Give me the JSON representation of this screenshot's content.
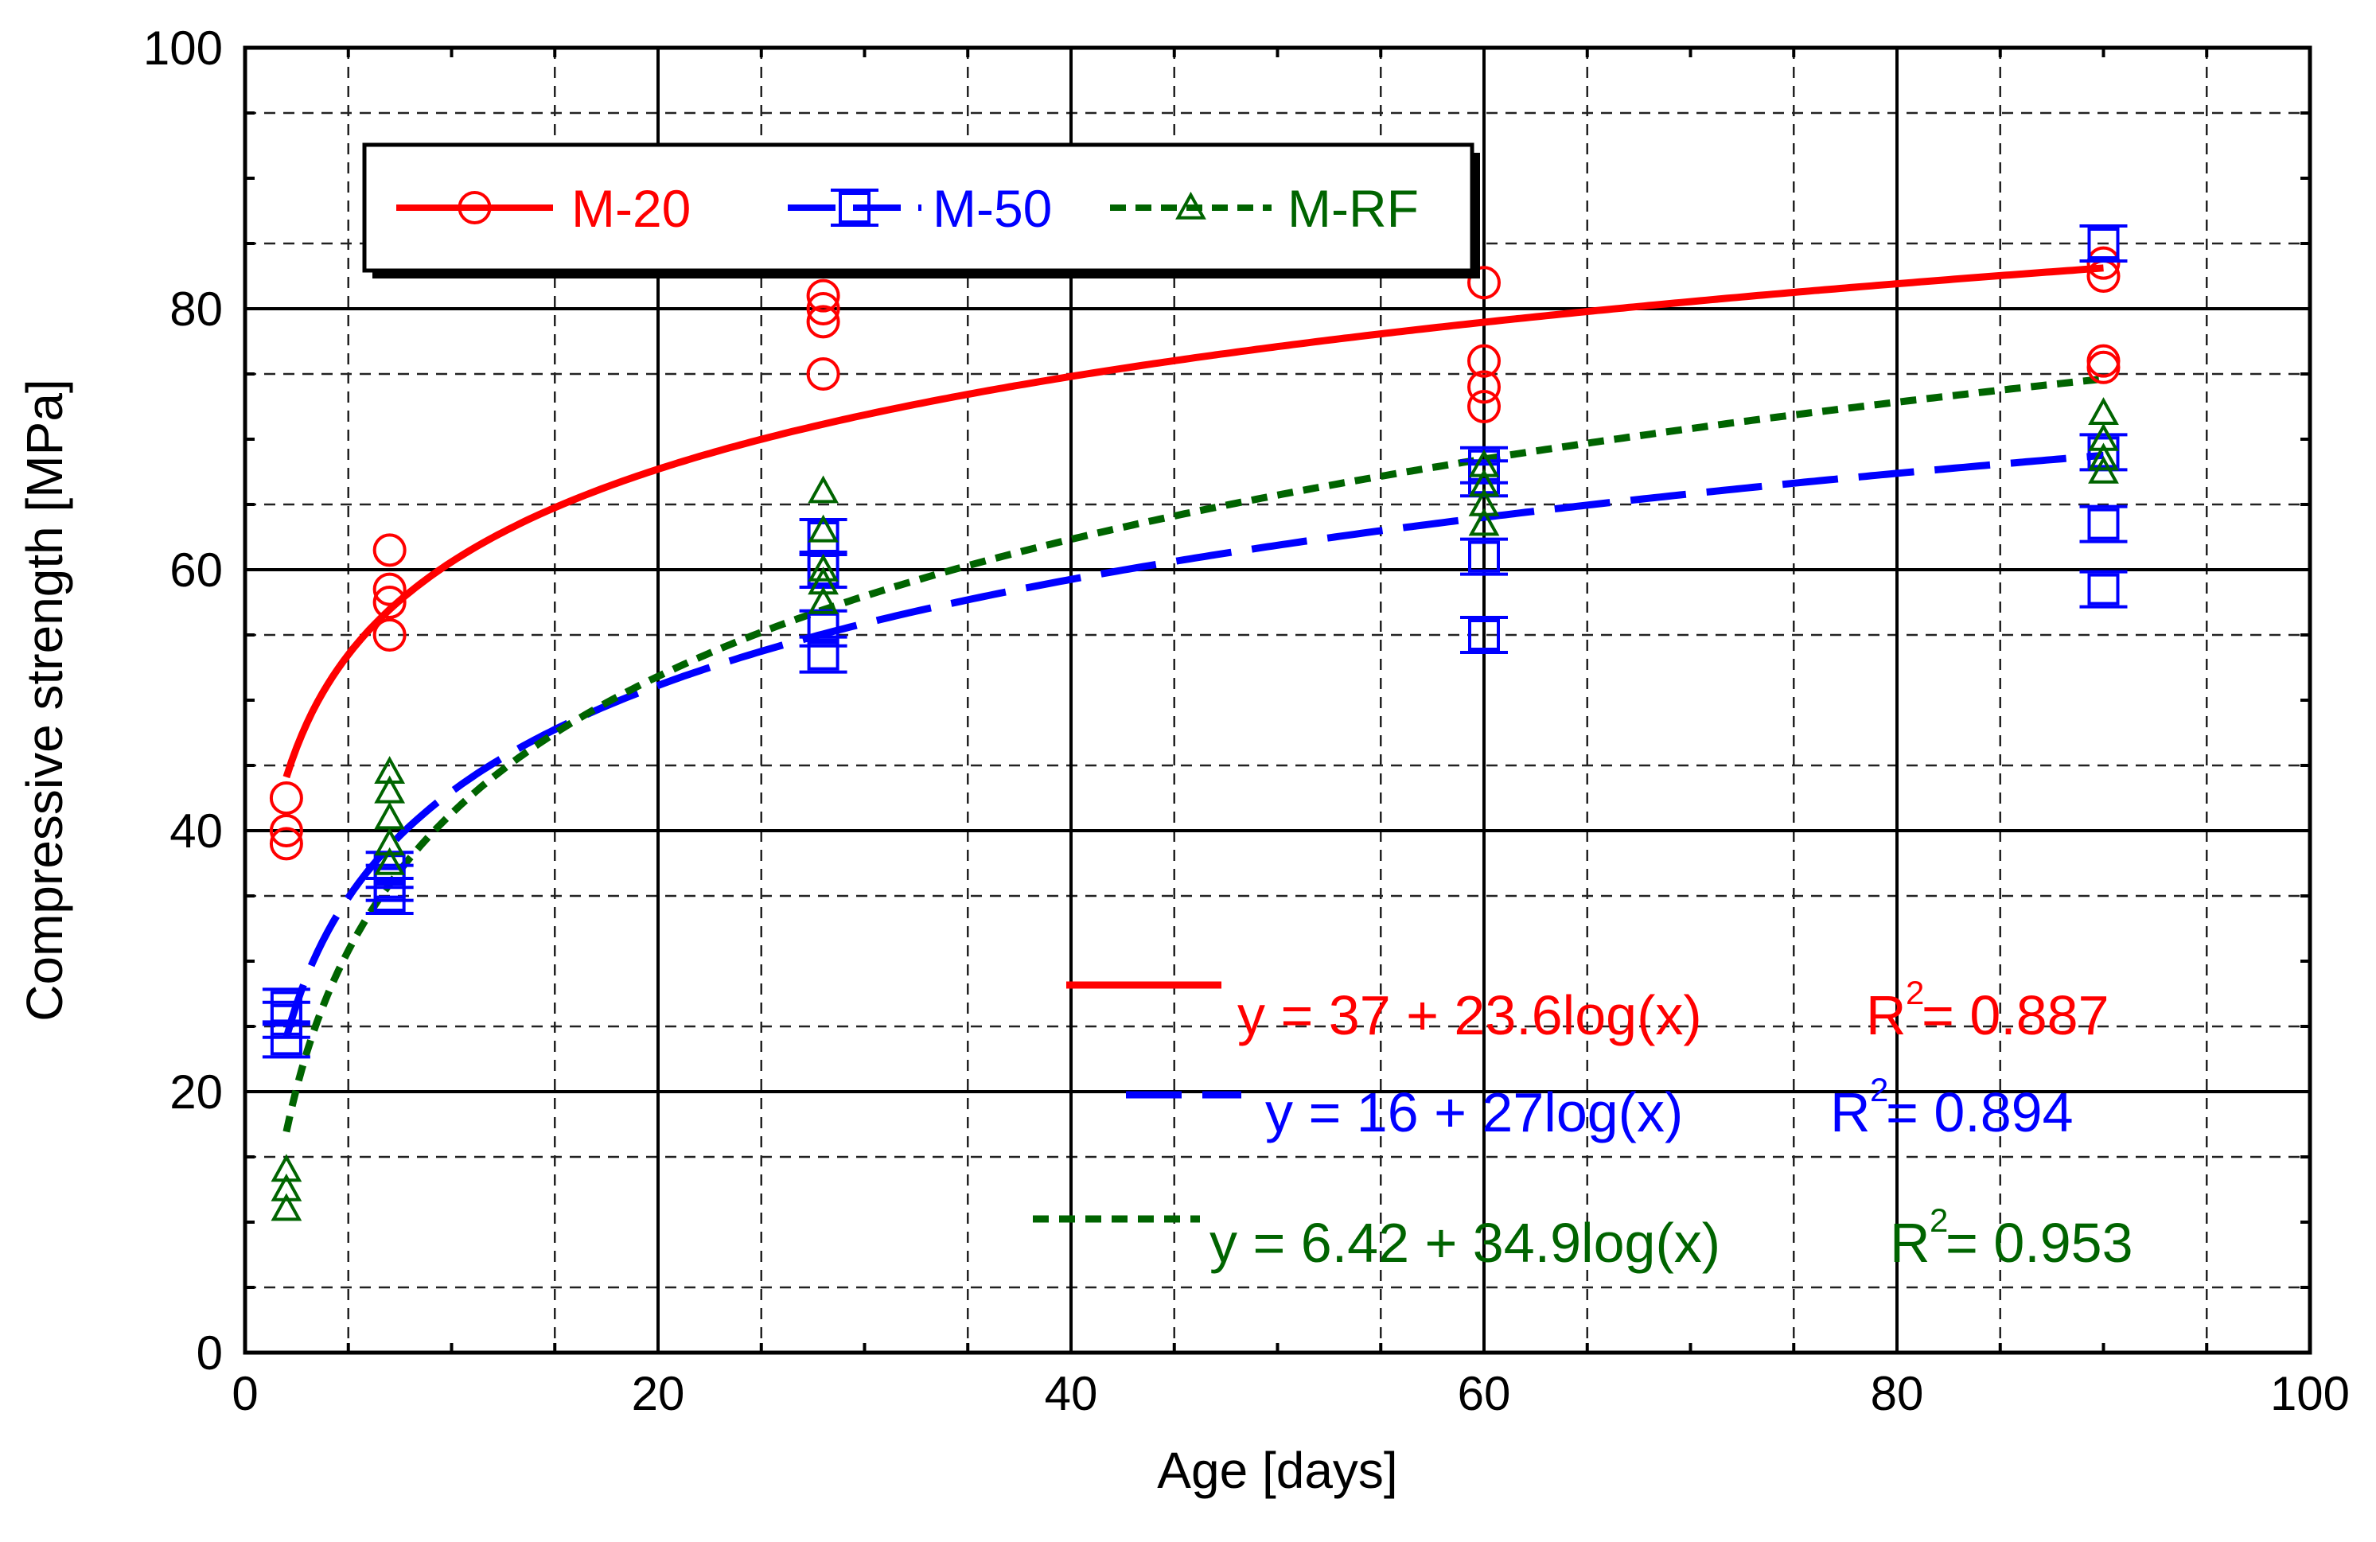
{
  "chart_data": {
    "type": "scatter",
    "title": "",
    "xlabel": "Age [days]",
    "ylabel": "Compressive strength [MPa]",
    "xlim": [
      0,
      100
    ],
    "ylim": [
      0,
      100
    ],
    "x_ticks": [
      "0",
      "20",
      "40",
      "60",
      "80",
      "100"
    ],
    "y_ticks": [
      "0",
      "20",
      "40",
      "60",
      "80",
      "100"
    ],
    "x_ticks_values": [
      0,
      20,
      40,
      60,
      80,
      100
    ],
    "y_ticks_values": [
      0,
      20,
      40,
      60,
      80,
      100
    ],
    "grid": true,
    "legend_position": "top-left",
    "series": [
      {
        "name": "M-20",
        "color": "#ff0000",
        "marker": "circle",
        "line_style": "solid",
        "points": [
          [
            2,
            39
          ],
          [
            2,
            40
          ],
          [
            2,
            42.5
          ],
          [
            7,
            55
          ],
          [
            7,
            57.5
          ],
          [
            7,
            58.5
          ],
          [
            7,
            61.5
          ],
          [
            28,
            75
          ],
          [
            28,
            79
          ],
          [
            28,
            80
          ],
          [
            28,
            81
          ],
          [
            60,
            72.5
          ],
          [
            60,
            74
          ],
          [
            60,
            76
          ],
          [
            60,
            82
          ],
          [
            90,
            75.5
          ],
          [
            90,
            76
          ],
          [
            90,
            82.5
          ],
          [
            90,
            83.5
          ]
        ],
        "fit": {
          "a": 37,
          "b": 23.6,
          "x_from": 2,
          "x_to": 90
        },
        "equation": "y = 37 + 23.6log(x)",
        "r2_label": "R",
        "r2_sup": "2",
        "r2_value": "= 0.887"
      },
      {
        "name": "M-50",
        "color": "#0000ff",
        "marker": "square",
        "line_style": "dashed",
        "points": [
          [
            2,
            24
          ],
          [
            2,
            25.5
          ],
          [
            2,
            26.5
          ],
          [
            7,
            35
          ],
          [
            7,
            36
          ],
          [
            7,
            37
          ],
          [
            28,
            53.5
          ],
          [
            28,
            55.5
          ],
          [
            28,
            60
          ],
          [
            28,
            62.5
          ],
          [
            60,
            55
          ],
          [
            60,
            61
          ],
          [
            60,
            67
          ],
          [
            60,
            68
          ],
          [
            90,
            58.5
          ],
          [
            90,
            63.5
          ],
          [
            90,
            69
          ],
          [
            90,
            85
          ]
        ],
        "fit": {
          "a": 16,
          "b": 27,
          "x_from": 2,
          "x_to": 90
        },
        "equation": "y = 16 + 27log(x)",
        "r2_label": "R",
        "r2_sup": "2",
        "r2_value": "= 0.894"
      },
      {
        "name": "M-RF",
        "color": "#006400",
        "marker": "triangle",
        "line_style": "dotted",
        "points": [
          [
            2,
            11
          ],
          [
            2,
            12.5
          ],
          [
            2,
            14
          ],
          [
            7,
            37.5
          ],
          [
            7,
            39
          ],
          [
            7,
            41
          ],
          [
            7,
            43
          ],
          [
            7,
            44.5
          ],
          [
            28,
            57.5
          ],
          [
            28,
            59
          ],
          [
            28,
            60
          ],
          [
            28,
            63
          ],
          [
            28,
            66
          ],
          [
            60,
            63.5
          ],
          [
            60,
            65
          ],
          [
            60,
            66.5
          ],
          [
            60,
            68
          ],
          [
            90,
            67.5
          ],
          [
            90,
            68.5
          ],
          [
            90,
            70
          ],
          [
            90,
            72
          ]
        ],
        "fit": {
          "a": 6.42,
          "b": 34.9,
          "x_from": 2,
          "x_to": 90
        },
        "equation": "y = 6.42 + 34.9log(x)",
        "r2_label": "R",
        "r2_sup": "2",
        "r2_value": "= 0.953"
      }
    ]
  }
}
